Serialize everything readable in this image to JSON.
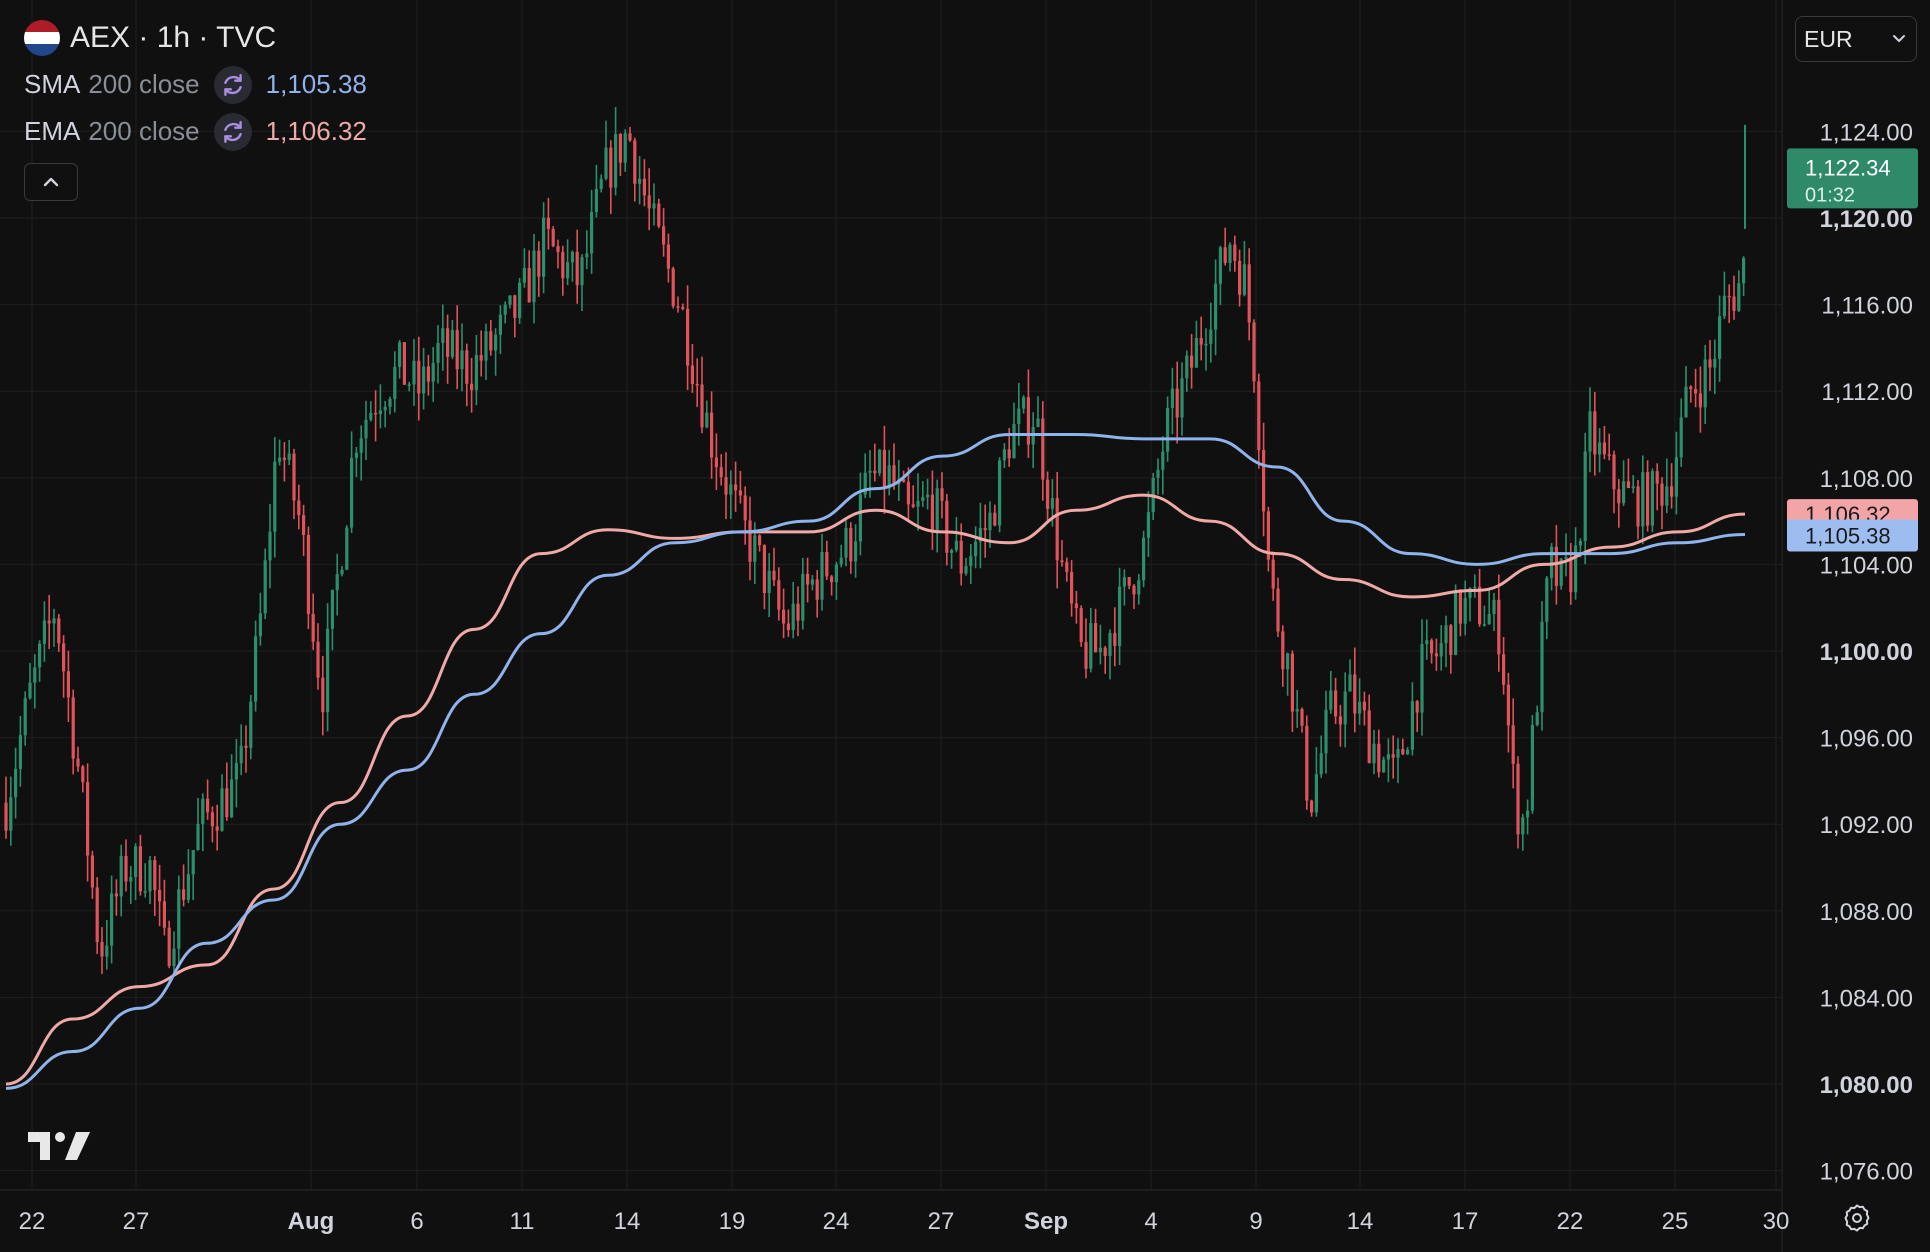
{
  "header": {
    "symbol_title": "AEX · 1h · TVC",
    "flag_icon": "netherlands-flag-icon",
    "indicators": [
      {
        "name": "SMA",
        "params": "200 close",
        "value": "1,105.38",
        "color": "#8fb3ea",
        "icon": "refresh-icon"
      },
      {
        "name": "EMA",
        "params": "200 close",
        "value": "1,106.32",
        "color": "#f0a9a7",
        "icon": "refresh-icon"
      }
    ],
    "collapse_icon": "chevron-up-icon",
    "currency": "EUR",
    "currency_icon": "chevron-down-icon"
  },
  "colors": {
    "background": "#101010",
    "up": "#2c8f6c",
    "down": "#e0535a",
    "sma": "#8fb3ea",
    "ema": "#f0a9a7",
    "grid": "#1f1f1f",
    "last_price_bg": "#2f8a6a"
  },
  "price_axis": {
    "labels": [
      "1,124.00",
      "1,120.00",
      "1,116.00",
      "1,112.00",
      "1,108.00",
      "1,104.00",
      "1,100.00",
      "1,096.00",
      "1,092.00",
      "1,088.00",
      "1,084.00",
      "1,080.00",
      "1,076.00"
    ],
    "bold_labels": [
      "1,120.00",
      "1,100.00",
      "1,080.00"
    ]
  },
  "time_axis": {
    "labels": [
      "22",
      "27",
      "Aug",
      "6",
      "11",
      "14",
      "19",
      "24",
      "27",
      "Sep",
      "4",
      "9",
      "14",
      "17",
      "22",
      "25",
      "30"
    ],
    "bold_labels": [
      "Aug",
      "Sep"
    ]
  },
  "price_tags": {
    "last": {
      "price": "1,122.34",
      "countdown": "01:32"
    },
    "ema": "1,106.32",
    "sma": "1,105.38"
  },
  "settings_icon": "gear-icon",
  "logo_icon": "tradingview-logo-icon",
  "chart_data": {
    "type": "candlestick",
    "y_axis_range": [
      1075,
      1126.5
    ],
    "x_axis_categories": [
      "22",
      "27",
      "Aug",
      "6",
      "11",
      "14",
      "19",
      "24",
      "27",
      "Sep",
      "4",
      "9",
      "14",
      "17",
      "22",
      "25",
      "30"
    ],
    "series": [
      {
        "name": "SMA 200 close",
        "type": "line",
        "values": [
          1079.8,
          1081.5,
          1083.5,
          1086.5,
          1088.5,
          1092.0,
          1094.5,
          1098.0,
          1100.8,
          1103.5,
          1105.0,
          1105.5,
          1106.0,
          1107.5,
          1109.0,
          1110.0,
          1110.0,
          1109.8,
          1109.8,
          1108.5,
          1106.0,
          1104.5,
          1104.0,
          1104.5,
          1104.5,
          1105.0,
          1105.38
        ]
      },
      {
        "name": "EMA 200 close",
        "type": "line",
        "values": [
          1080.0,
          1083.0,
          1084.5,
          1085.5,
          1089.0,
          1093.0,
          1097.0,
          1101.0,
          1104.5,
          1105.6,
          1105.2,
          1105.5,
          1105.5,
          1106.5,
          1105.5,
          1105.0,
          1106.5,
          1107.2,
          1106.0,
          1104.5,
          1103.3,
          1102.5,
          1102.8,
          1104.0,
          1104.8,
          1105.5,
          1106.32
        ]
      }
    ],
    "last_price": 1122.34
  }
}
